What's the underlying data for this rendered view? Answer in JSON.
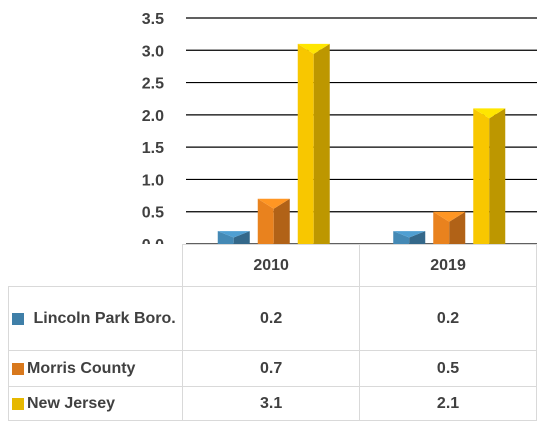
{
  "chart_data": {
    "type": "bar",
    "categories": [
      "2010",
      "2019"
    ],
    "series": [
      {
        "name": "Lincoln Park Boro.",
        "values": [
          0.2,
          0.2
        ],
        "color": "#3f7fa8"
      },
      {
        "name": "Morris County",
        "values": [
          0.7,
          0.5
        ],
        "color": "#d8781c"
      },
      {
        "name": "New Jersey",
        "values": [
          3.1,
          2.1
        ],
        "color": "#e6b800"
      }
    ],
    "ylim": [
      0,
      3.5
    ],
    "yticks": [
      "0.0",
      "0.5",
      "1.0",
      "1.5",
      "2.0",
      "2.5",
      "3.0",
      "3.5"
    ],
    "grid": true,
    "style": "3d-bar",
    "legend": "data-table",
    "data_table": [
      {
        "label": "Lincoln Park Boro.",
        "values": [
          "0.2",
          "0.2"
        ]
      },
      {
        "label": "Morris County",
        "values": [
          "0.7",
          "0.5"
        ]
      },
      {
        "label": "New Jersey",
        "values": [
          "3.1",
          "2.1"
        ]
      }
    ]
  }
}
